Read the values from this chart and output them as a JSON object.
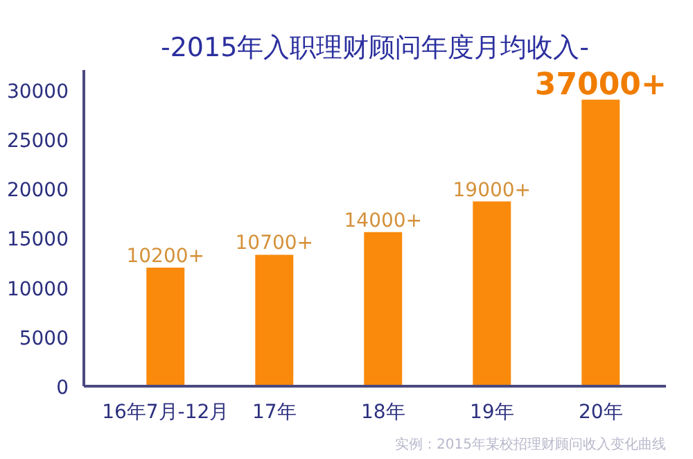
{
  "chart_data": {
    "type": "bar",
    "title": "-2015年入职理财顾问年度月均收入-",
    "categories": [
      "16年7月-12月",
      "17年",
      "18年",
      "19年",
      "20年"
    ],
    "values": [
      12000,
      13300,
      15600,
      18700,
      29000
    ],
    "value_labels": [
      "10200+",
      "10700+",
      "14000+",
      "19000+",
      "37000+"
    ],
    "color": "#f98a0c",
    "ylim": [
      0,
      32000
    ],
    "yticks": [
      0,
      5000,
      10000,
      15000,
      20000,
      25000,
      30000
    ],
    "grid": false,
    "annotations": [
      "实例：2015年某校招理财顾问收入变化曲线"
    ]
  }
}
